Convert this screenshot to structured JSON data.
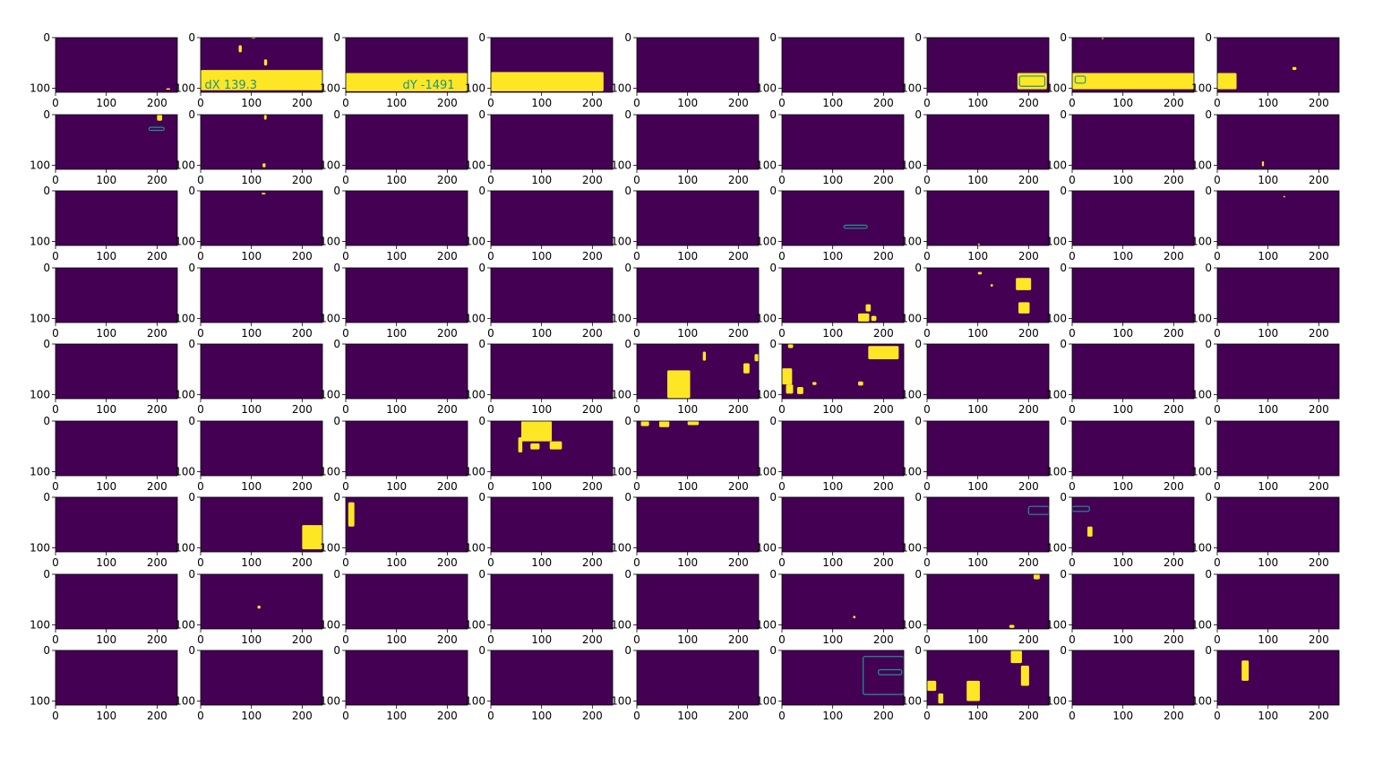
{
  "chart_data": {
    "type": "heatmap",
    "layout": {
      "rows": 9,
      "cols": 9
    },
    "colormap": {
      "background": "#440154",
      "foreground": "#fde725",
      "edge": "#21918c"
    },
    "xticks": [
      "0",
      "100",
      "200"
    ],
    "yticks": [
      "0",
      "100"
    ],
    "xlim": [
      0,
      240
    ],
    "ylim": [
      108,
      0
    ],
    "panels": [
      {
        "blobs": [
          [
            218,
            100,
            8,
            3
          ]
        ]
      },
      {
        "blobs": [
          [
            0,
            64,
            240,
            40
          ],
          [
            75,
            15,
            6,
            14
          ],
          [
            125,
            43,
            6,
            12
          ],
          [
            100,
            0,
            8,
            2
          ]
        ],
        "labels": [
          {
            "text": "dX  139.3",
            "x": 8,
            "y": 92
          }
        ]
      },
      {
        "blobs": [
          [
            0,
            70,
            240,
            36
          ]
        ],
        "labels": [
          {
            "text": "dY  -1491",
            "x": 112,
            "y": 92
          }
        ]
      },
      {
        "blobs": [
          [
            0,
            68,
            222,
            38
          ]
        ]
      },
      {
        "blobs": []
      },
      {
        "blobs": []
      },
      {
        "blobs": [
          [
            178,
            70,
            58,
            32
          ]
        ],
        "edgeBlobs": [
          [
            182,
            76,
            50,
            20
          ]
        ]
      },
      {
        "blobs": [
          [
            0,
            70,
            240,
            32
          ],
          [
            58,
            0,
            4,
            3
          ]
        ],
        "edgeBlobs": [
          [
            6,
            76,
            20,
            14
          ]
        ]
      },
      {
        "blobs": [
          [
            0,
            70,
            38,
            32
          ],
          [
            148,
            58,
            8,
            6
          ]
        ]
      },
      {
        "blobs": [
          [
            200,
            0,
            10,
            12
          ]
        ],
        "edgeBlobs": [
          [
            184,
            25,
            30,
            6
          ]
        ]
      },
      {
        "blobs": [
          [
            125,
            0,
            5,
            10
          ],
          [
            122,
            96,
            6,
            8
          ]
        ]
      },
      {
        "blobs": []
      },
      {
        "blobs": []
      },
      {
        "blobs": []
      },
      {
        "blobs": []
      },
      {
        "blobs": []
      },
      {
        "blobs": []
      },
      {
        "blobs": [
          [
            88,
            92,
            4,
            10
          ]
        ]
      },
      {
        "blobs": []
      },
      {
        "blobs": [
          [
            120,
            4,
            8,
            3
          ]
        ]
      },
      {
        "blobs": []
      },
      {
        "blobs": []
      },
      {
        "blobs": []
      },
      {
        "blobs": [],
        "edgeBlobs": [
          [
            122,
            68,
            46,
            6
          ]
        ]
      },
      {
        "blobs": [
          [
            100,
            104,
            4,
            4
          ]
        ]
      },
      {
        "blobs": []
      },
      {
        "blobs": [
          [
            130,
            10,
            4,
            3
          ]
        ]
      },
      {
        "blobs": []
      },
      {
        "blobs": []
      },
      {
        "blobs": []
      },
      {
        "blobs": []
      },
      {
        "blobs": []
      },
      {
        "blobs": [
          [
            165,
            72,
            10,
            14
          ],
          [
            150,
            90,
            22,
            16
          ],
          [
            176,
            95,
            10,
            10
          ]
        ]
      },
      {
        "blobs": [
          [
            175,
            20,
            30,
            24
          ],
          [
            180,
            68,
            22,
            22
          ],
          [
            100,
            8,
            8,
            5
          ],
          [
            125,
            32,
            5,
            5
          ]
        ]
      },
      {
        "blobs": []
      },
      {
        "blobs": []
      },
      {
        "blobs": []
      },
      {
        "blobs": []
      },
      {
        "blobs": []
      },
      {
        "blobs": []
      },
      {
        "blobs": [
          [
            60,
            52,
            45,
            55
          ],
          [
            130,
            15,
            6,
            18
          ],
          [
            210,
            38,
            12,
            20
          ],
          [
            232,
            20,
            8,
            14
          ]
        ]
      },
      {
        "blobs": [
          [
            170,
            4,
            60,
            26
          ],
          [
            0,
            48,
            20,
            32
          ],
          [
            8,
            80,
            14,
            18
          ],
          [
            30,
            85,
            12,
            14
          ],
          [
            12,
            0,
            10,
            8
          ],
          [
            60,
            75,
            8,
            6
          ],
          [
            150,
            74,
            10,
            8
          ]
        ]
      },
      {
        "blobs": []
      },
      {
        "blobs": []
      },
      {
        "blobs": []
      },
      {
        "blobs": []
      },
      {
        "blobs": []
      },
      {
        "blobs": []
      },
      {
        "blobs": [
          [
            60,
            0,
            60,
            40
          ],
          [
            116,
            40,
            24,
            16
          ],
          [
            78,
            44,
            18,
            12
          ],
          [
            54,
            32,
            8,
            30
          ]
        ]
      },
      {
        "blobs": [
          [
            8,
            0,
            16,
            10
          ],
          [
            44,
            0,
            20,
            12
          ],
          [
            100,
            0,
            22,
            8
          ]
        ]
      },
      {
        "blobs": []
      },
      {
        "blobs": []
      },
      {
        "blobs": []
      },
      {
        "blobs": []
      },
      {
        "blobs": []
      },
      {
        "blobs": [
          [
            200,
            55,
            40,
            48
          ]
        ]
      },
      {
        "blobs": [
          [
            5,
            10,
            12,
            48
          ]
        ]
      },
      {
        "blobs": []
      },
      {
        "blobs": []
      },
      {
        "blobs": []
      },
      {
        "blobs": [],
        "edgeBlobs": [
          [
            200,
            18,
            40,
            16
          ]
        ]
      },
      {
        "blobs": [
          [
            30,
            58,
            10,
            20
          ]
        ],
        "edgeBlobs": [
          [
            0,
            18,
            34,
            10
          ]
        ]
      },
      {
        "blobs": []
      },
      {
        "blobs": []
      },
      {
        "blobs": [
          [
            112,
            62,
            6,
            6
          ]
        ]
      },
      {
        "blobs": []
      },
      {
        "blobs": []
      },
      {
        "blobs": []
      },
      {
        "blobs": [
          [
            140,
            82,
            5,
            5
          ]
        ]
      },
      {
        "blobs": [
          [
            210,
            0,
            12,
            10
          ],
          [
            162,
            100,
            10,
            6
          ]
        ]
      },
      {
        "blobs": []
      },
      {
        "blobs": []
      },
      {
        "blobs": []
      },
      {
        "blobs": []
      },
      {
        "blobs": []
      },
      {
        "blobs": []
      },
      {
        "blobs": []
      },
      {
        "blobs": [],
        "edgeBlobs": [
          [
            160,
            12,
            80,
            75
          ],
          [
            190,
            38,
            46,
            10
          ]
        ]
      },
      {
        "blobs": [
          [
            78,
            60,
            26,
            40
          ],
          [
            165,
            0,
            22,
            25
          ],
          [
            185,
            30,
            16,
            40
          ],
          [
            0,
            60,
            18,
            20
          ],
          [
            22,
            85,
            10,
            20
          ]
        ]
      },
      {
        "blobs": []
      },
      {
        "blobs": [
          [
            48,
            20,
            14,
            40
          ]
        ]
      }
    ]
  }
}
